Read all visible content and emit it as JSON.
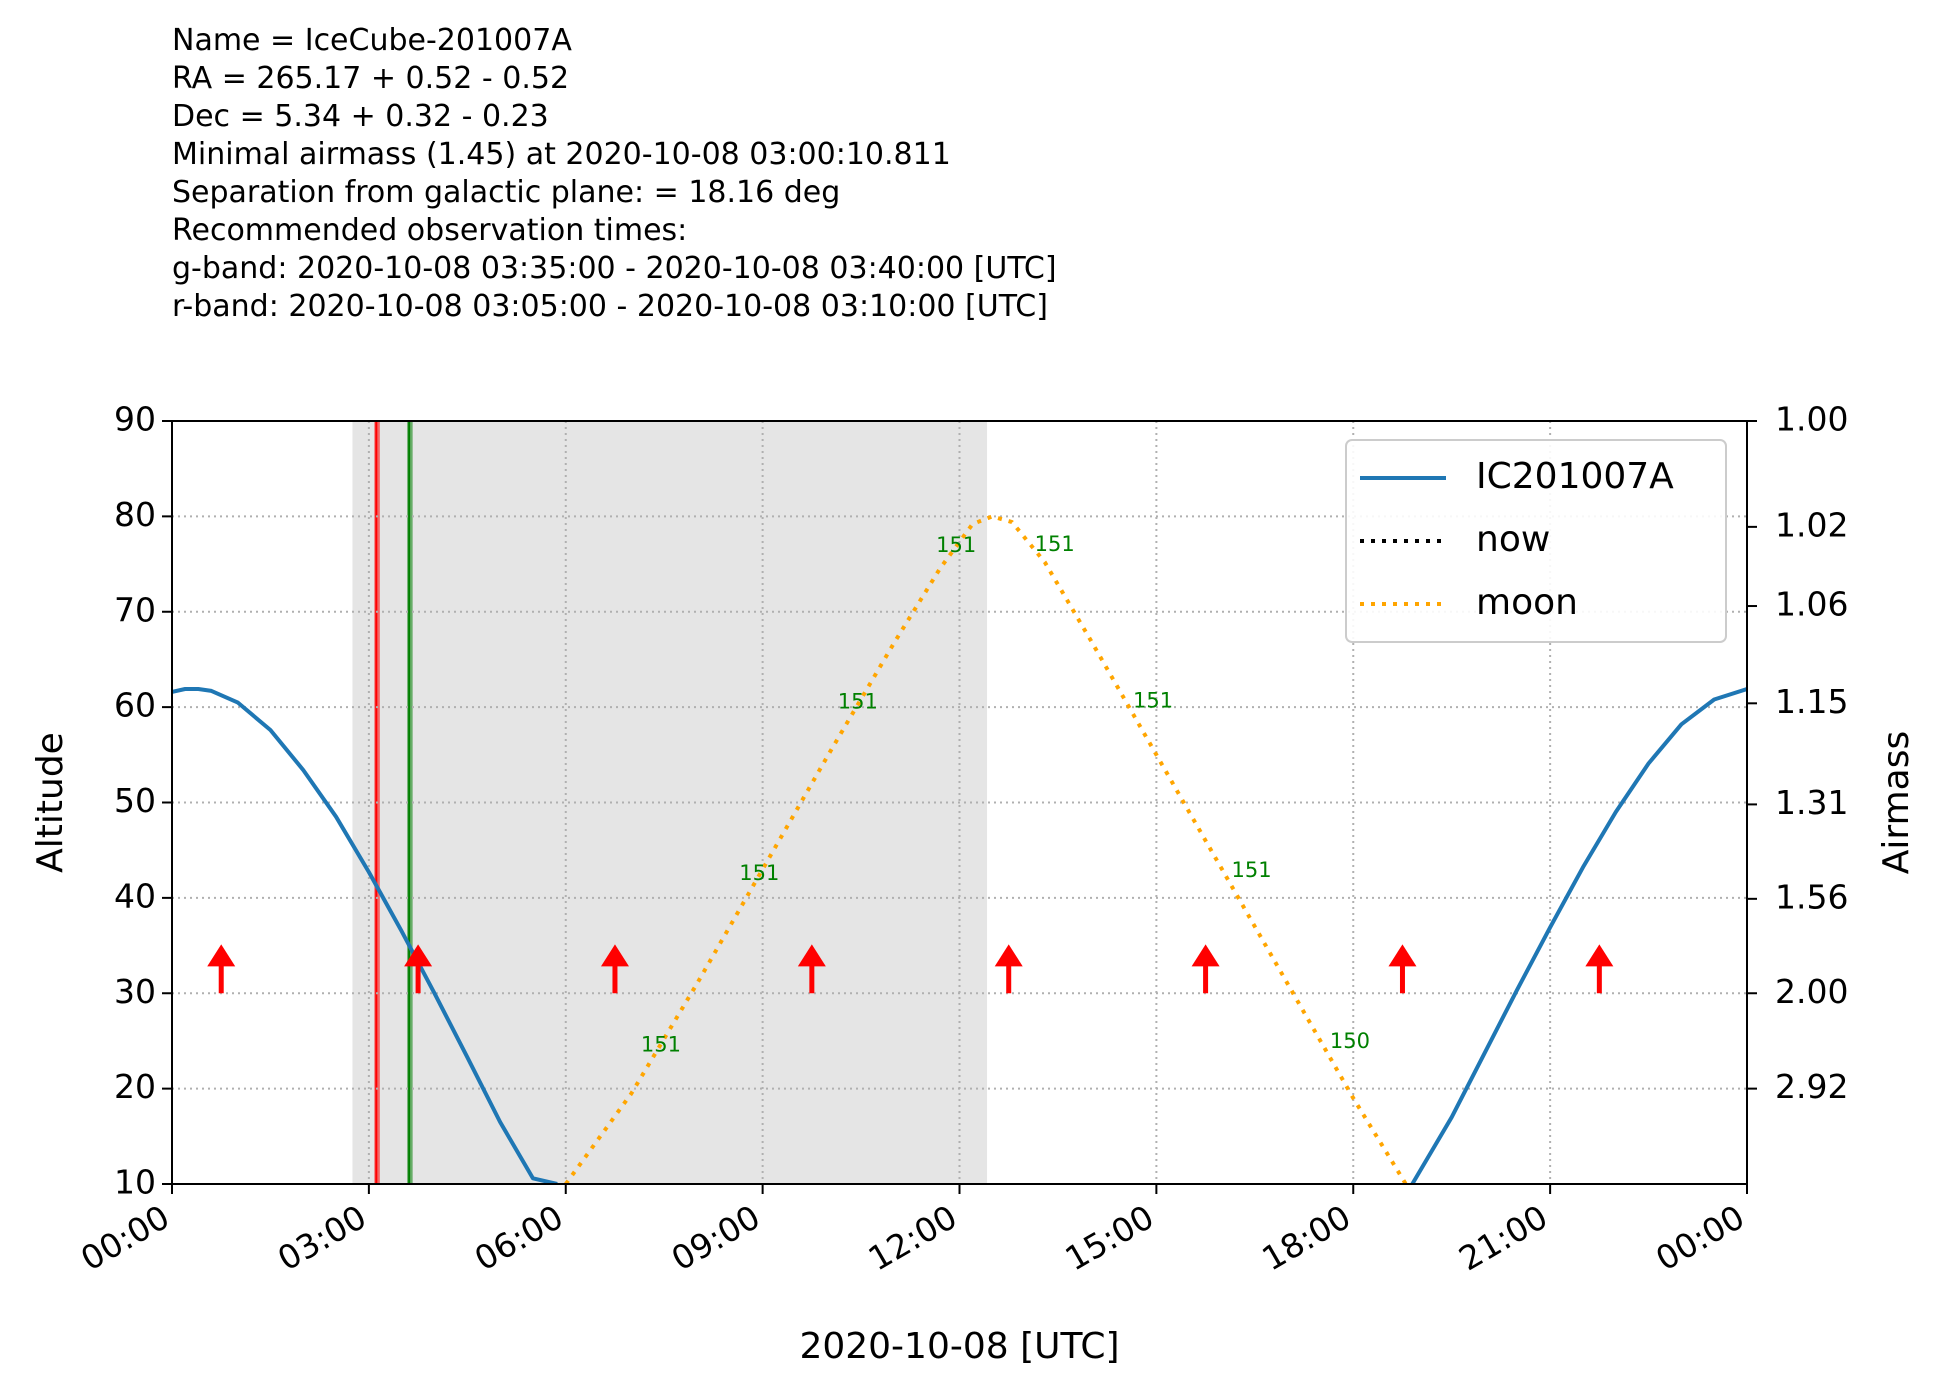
{
  "info_lines": [
    "Name = IceCube-201007A",
    "RA = 265.17 + 0.52 - 0.52",
    "Dec = 5.34 + 0.32 - 0.23",
    "Minimal airmass (1.45) at 2020-10-08 03:00:10.811",
    "Separation from galactic plane: = 18.16 deg",
    "Recommended observation times:",
    "g-band: 2020-10-08 03:35:00 - 2020-10-08 03:40:00 [UTC]",
    "r-band: 2020-10-08 03:05:00 - 2020-10-08 03:10:00 [UTC]"
  ],
  "chart_data": {
    "type": "line",
    "xlabel": "2020-10-08 [UTC]",
    "ylabel": "Altitude",
    "ylabel_right": "Airmass",
    "xlim_hours": [
      0,
      24
    ],
    "ylim": [
      10,
      90
    ],
    "x_ticks": [
      "00:00",
      "03:00",
      "06:00",
      "09:00",
      "12:00",
      "15:00",
      "18:00",
      "21:00",
      "00:00"
    ],
    "y_ticks": [
      10,
      20,
      30,
      40,
      50,
      60,
      70,
      80,
      90
    ],
    "airmass_ticks": [
      {
        "altitude": 90,
        "label": "1.00"
      },
      {
        "altitude": 78.9,
        "label": "1.02"
      },
      {
        "altitude": 70.6,
        "label": "1.06"
      },
      {
        "altitude": 60.4,
        "label": "1.15"
      },
      {
        "altitude": 49.8,
        "label": "1.31"
      },
      {
        "altitude": 39.9,
        "label": "1.56"
      },
      {
        "altitude": 30.0,
        "label": "2.00"
      },
      {
        "altitude": 20.0,
        "label": "2.92"
      }
    ],
    "grid": true,
    "legend_position": "top-right",
    "colors": {
      "target": "#1f77b4",
      "moon": "#ffa500",
      "now": "#000000",
      "r_band": "#ff0000",
      "g_band": "#008000",
      "night_shade": "#cccccc",
      "moon_label": "#008000",
      "arrow": "#ff0000"
    },
    "series": [
      {
        "name": "IC201007A",
        "style": "solid",
        "x_hours": [
          0.0,
          0.2,
          0.4,
          0.6,
          1.0,
          1.5,
          2.0,
          2.5,
          3.0,
          3.5,
          4.0,
          4.5,
          5.0,
          5.5,
          5.87,
          18.9,
          19.5,
          20.0,
          20.5,
          21.0,
          21.5,
          22.0,
          22.5,
          23.0,
          23.5,
          24.0
        ],
        "y": [
          61.6,
          61.9,
          61.9,
          61.7,
          60.5,
          57.6,
          53.4,
          48.5,
          42.7,
          36.5,
          30.0,
          23.3,
          16.5,
          10.6,
          10.0,
          10.0,
          17.0,
          23.7,
          30.4,
          36.9,
          43.2,
          49.0,
          54.1,
          58.2,
          60.8,
          61.9
        ]
      },
      {
        "name": "moon",
        "style": "dotted",
        "x_hours": [
          6.0,
          7.0,
          8.0,
          9.0,
          10.0,
          11.0,
          11.7,
          12.2,
          12.5,
          12.8,
          13.3,
          14.0,
          15.0,
          16.0,
          17.0,
          18.0,
          18.8
        ],
        "y": [
          10.0,
          19.5,
          31.0,
          43.0,
          55.0,
          66.7,
          74.5,
          79.2,
          80.0,
          79.4,
          75.2,
          67.0,
          55.0,
          43.0,
          31.0,
          19.0,
          10.0
        ]
      },
      {
        "name": "now",
        "style": "dotted",
        "x_hours": [],
        "y": []
      }
    ],
    "night_span_hours": [
      2.75,
      12.42
    ],
    "r_band_span_hours": [
      3.083,
      3.167
    ],
    "g_band_span_hours": [
      3.583,
      3.667
    ],
    "arrows": {
      "x_hours": [
        0.75,
        3.75,
        6.75,
        9.75,
        12.75,
        15.75,
        18.75,
        21.75
      ],
      "y_range": [
        30,
        34.5
      ]
    },
    "moon_labels": [
      {
        "x_hours": 7.45,
        "y": 24.5,
        "text": "151"
      },
      {
        "x_hours": 8.95,
        "y": 42.5,
        "text": "151"
      },
      {
        "x_hours": 10.45,
        "y": 60.5,
        "text": "151"
      },
      {
        "x_hours": 11.95,
        "y": 76.9,
        "text": "151"
      },
      {
        "x_hours": 13.45,
        "y": 77.0,
        "text": "151"
      },
      {
        "x_hours": 14.95,
        "y": 60.6,
        "text": "151"
      },
      {
        "x_hours": 16.45,
        "y": 42.8,
        "text": "151"
      },
      {
        "x_hours": 17.95,
        "y": 24.9,
        "text": "150"
      }
    ]
  }
}
